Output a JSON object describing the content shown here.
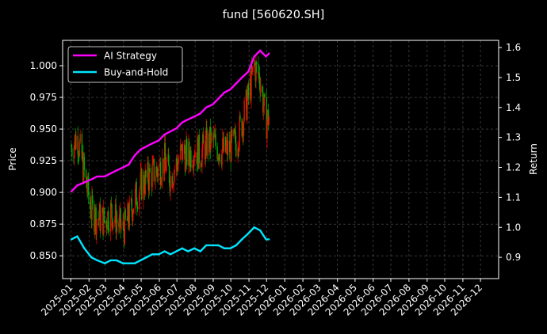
{
  "chart_data": {
    "type": "line",
    "title": "fund [560620.SH]",
    "ylabel_left": "Price",
    "ylabel_right": "Return",
    "xlabel": "",
    "background": "#000000",
    "grid": true,
    "legend_position": "top-left",
    "x_ticks": [
      "2025-01",
      "2025-02",
      "2025-03",
      "2025-04",
      "2025-05",
      "2025-06",
      "2025-07",
      "2025-08",
      "2025-09",
      "2025-10",
      "2025-11",
      "2025-12",
      "2026-01",
      "2026-02",
      "2026-03",
      "2026-04",
      "2026-05",
      "2026-06",
      "2026-07",
      "2026-08",
      "2026-09",
      "2026-10",
      "2026-11",
      "2026-12"
    ],
    "x_range": [
      "2024-12-18",
      "2027-01-01"
    ],
    "y_left_ticks": [
      0.85,
      0.875,
      0.9,
      0.925,
      0.95,
      0.975,
      1.0
    ],
    "y_left_tick_labels": [
      "0.850",
      "0.875",
      "0.900",
      "0.925",
      "0.950",
      "0.975",
      "1.000"
    ],
    "y_left_range": [
      0.832,
      1.02
    ],
    "y_right_ticks": [
      0.9,
      1.0,
      1.1,
      1.2,
      1.3,
      1.4,
      1.5,
      1.6
    ],
    "y_right_tick_labels": [
      "0.9",
      "1.0",
      "1.1",
      "1.2",
      "1.3",
      "1.4",
      "1.5",
      "1.6"
    ],
    "y_right_range": [
      0.829,
      1.624
    ],
    "series": [
      {
        "name": "AI Strategy",
        "axis": "right",
        "color": "#ff00ff",
        "x": [
          "2025-01-02",
          "2025-01-12",
          "2025-01-24",
          "2025-02-05",
          "2025-02-15",
          "2025-02-28",
          "2025-03-10",
          "2025-03-20",
          "2025-03-31",
          "2025-04-10",
          "2025-04-20",
          "2025-04-30",
          "2025-05-10",
          "2025-05-20",
          "2025-05-31",
          "2025-06-10",
          "2025-06-20",
          "2025-06-30",
          "2025-07-10",
          "2025-07-20",
          "2025-07-31",
          "2025-08-10",
          "2025-08-20",
          "2025-08-31",
          "2025-09-10",
          "2025-09-20",
          "2025-09-30",
          "2025-10-10",
          "2025-10-20",
          "2025-10-31",
          "2025-11-10",
          "2025-11-20",
          "2025-11-30",
          "2025-12-05"
        ],
        "values": [
          1.12,
          1.14,
          1.15,
          1.16,
          1.17,
          1.17,
          1.18,
          1.19,
          1.2,
          1.21,
          1.24,
          1.26,
          1.27,
          1.28,
          1.29,
          1.31,
          1.32,
          1.33,
          1.35,
          1.36,
          1.37,
          1.38,
          1.4,
          1.41,
          1.43,
          1.45,
          1.46,
          1.48,
          1.5,
          1.52,
          1.57,
          1.59,
          1.57,
          1.58
        ]
      },
      {
        "name": "Buy-and-Hold",
        "axis": "right",
        "color": "#00e5ff",
        "x": [
          "2025-01-02",
          "2025-01-12",
          "2025-01-24",
          "2025-02-05",
          "2025-02-15",
          "2025-02-28",
          "2025-03-10",
          "2025-03-20",
          "2025-03-31",
          "2025-04-10",
          "2025-04-20",
          "2025-04-30",
          "2025-05-10",
          "2025-05-20",
          "2025-05-31",
          "2025-06-10",
          "2025-06-20",
          "2025-06-30",
          "2025-07-10",
          "2025-07-20",
          "2025-07-31",
          "2025-08-10",
          "2025-08-20",
          "2025-08-31",
          "2025-09-10",
          "2025-09-20",
          "2025-09-30",
          "2025-10-10",
          "2025-10-20",
          "2025-10-31",
          "2025-11-10",
          "2025-11-20",
          "2025-11-30",
          "2025-12-05"
        ],
        "values": [
          0.96,
          0.97,
          0.93,
          0.9,
          0.89,
          0.88,
          0.89,
          0.89,
          0.88,
          0.88,
          0.88,
          0.89,
          0.9,
          0.91,
          0.91,
          0.92,
          0.91,
          0.92,
          0.93,
          0.92,
          0.93,
          0.92,
          0.94,
          0.94,
          0.94,
          0.93,
          0.93,
          0.94,
          0.96,
          0.98,
          1.0,
          0.99,
          0.96,
          0.96
        ]
      },
      {
        "name": "price",
        "axis": "left",
        "type": "candlestick",
        "color_up": "#ff0000",
        "color_down": "#00aa00",
        "x": [
          "2025-01-02",
          "2025-01-12",
          "2025-01-24",
          "2025-02-05",
          "2025-02-15",
          "2025-02-28",
          "2025-03-10",
          "2025-03-20",
          "2025-03-31",
          "2025-04-10",
          "2025-04-20",
          "2025-04-30",
          "2025-05-10",
          "2025-05-20",
          "2025-05-31",
          "2025-06-10",
          "2025-06-20",
          "2025-06-30",
          "2025-07-10",
          "2025-07-20",
          "2025-07-31",
          "2025-08-10",
          "2025-08-20",
          "2025-08-31",
          "2025-09-10",
          "2025-09-20",
          "2025-09-30",
          "2025-10-10",
          "2025-10-20",
          "2025-10-31",
          "2025-11-10",
          "2025-11-20",
          "2025-11-30",
          "2025-12-05"
        ],
        "values": [
          0.935,
          0.945,
          0.915,
          0.885,
          0.88,
          0.878,
          0.885,
          0.878,
          0.87,
          0.88,
          0.895,
          0.905,
          0.91,
          0.915,
          0.918,
          0.925,
          0.912,
          0.922,
          0.932,
          0.928,
          0.935,
          0.93,
          0.938,
          0.94,
          0.935,
          0.932,
          0.935,
          0.94,
          0.955,
          0.975,
          1.0,
          0.99,
          0.955,
          0.96
        ]
      }
    ]
  }
}
